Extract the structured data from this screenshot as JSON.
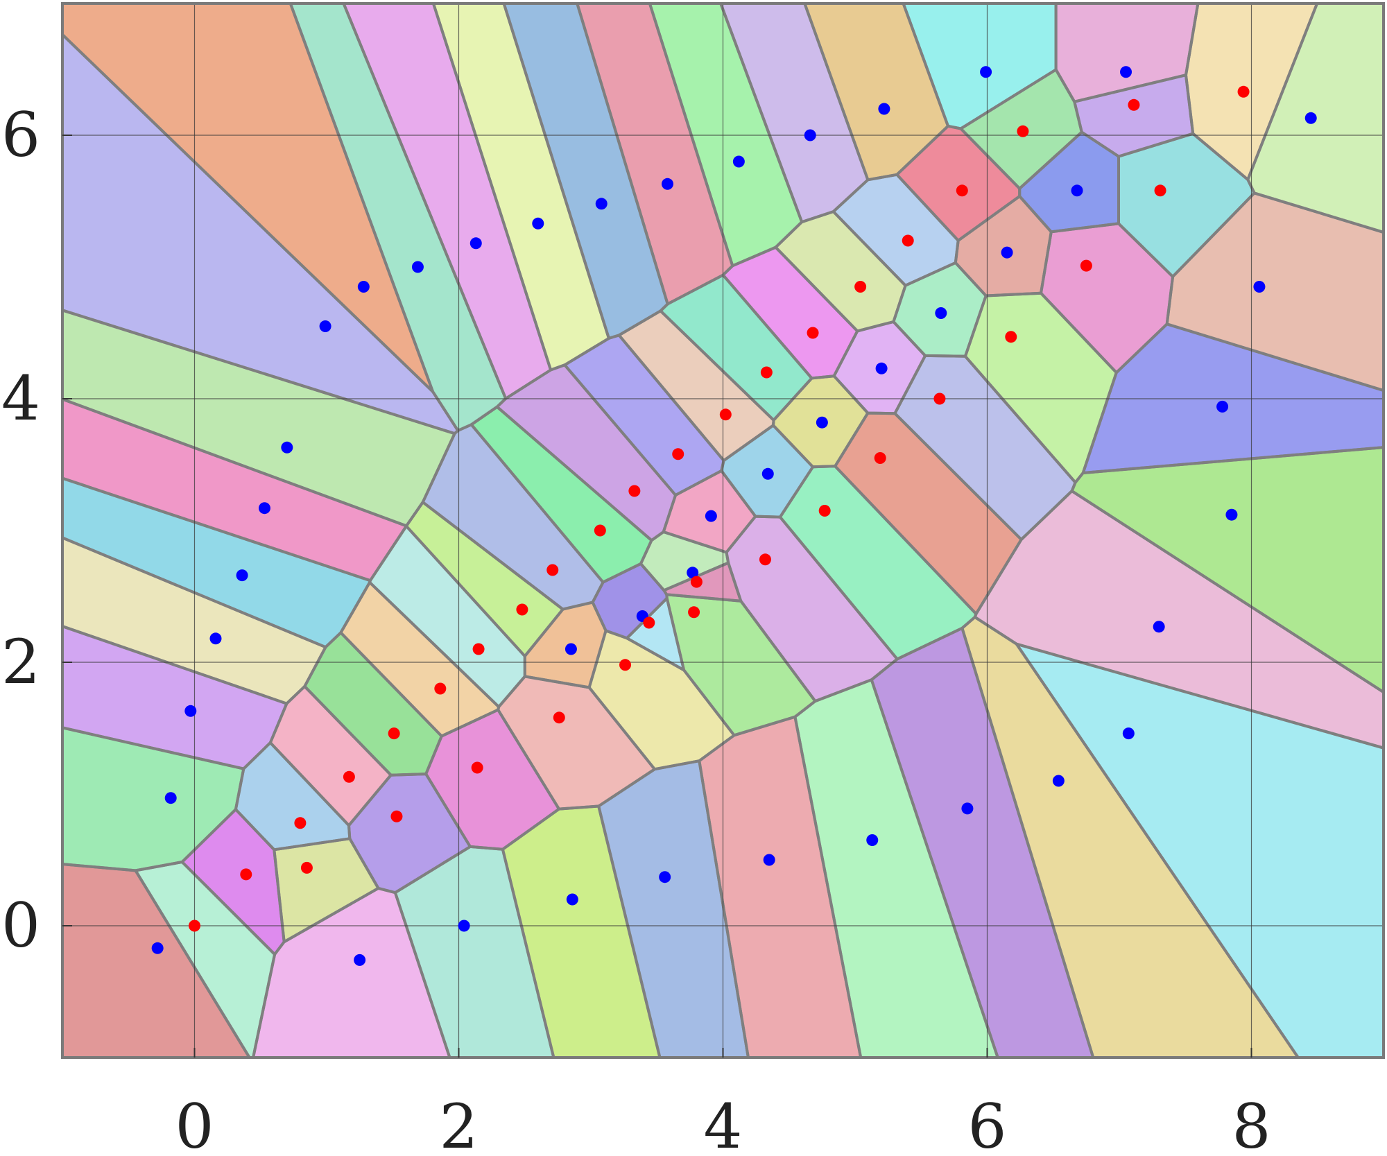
{
  "chart_data": {
    "type": "scatter",
    "title": "",
    "xlabel": "",
    "ylabel": "",
    "xlim": [
      -1,
      9
    ],
    "ylim": [
      -1,
      7
    ],
    "grid": true,
    "background": "voronoi-regions",
    "x_ticks": [
      0,
      2,
      4,
      6,
      8
    ],
    "y_ticks": [
      0,
      2,
      4,
      6
    ],
    "x_tick_labels": [
      "0",
      "2",
      "4",
      "6",
      "8"
    ],
    "y_tick_labels": [
      "0",
      "2",
      "4",
      "6"
    ],
    "series": [
      {
        "color": "#0000ff",
        "points": [
          [
            -0.28,
            -0.17
          ],
          [
            -0.18,
            0.97
          ],
          [
            -0.03,
            1.63
          ],
          [
            0.16,
            2.18
          ],
          [
            0.36,
            2.66
          ],
          [
            0.53,
            3.17
          ],
          [
            0.7,
            3.63
          ],
          [
            0.99,
            4.55
          ],
          [
            1.28,
            4.85
          ],
          [
            1.69,
            5.0
          ],
          [
            2.13,
            5.18
          ],
          [
            2.6,
            5.33
          ],
          [
            3.08,
            5.48
          ],
          [
            3.58,
            5.63
          ],
          [
            4.12,
            5.8
          ],
          [
            4.66,
            6.0
          ],
          [
            5.22,
            6.2
          ],
          [
            5.99,
            6.48
          ],
          [
            7.05,
            6.48
          ],
          [
            8.45,
            6.13
          ],
          [
            6.68,
            5.58
          ],
          [
            6.15,
            5.11
          ],
          [
            5.65,
            4.65
          ],
          [
            5.2,
            4.23
          ],
          [
            4.75,
            3.82
          ],
          [
            4.34,
            3.43
          ],
          [
            3.91,
            3.11
          ],
          [
            3.77,
            2.68
          ],
          [
            3.39,
            2.35
          ],
          [
            2.85,
            2.1
          ],
          [
            2.04,
            0.0
          ],
          [
            1.25,
            -0.26
          ],
          [
            2.86,
            0.2
          ],
          [
            3.56,
            0.37
          ],
          [
            4.35,
            0.5
          ],
          [
            5.13,
            0.65
          ],
          [
            5.85,
            0.89
          ],
          [
            6.54,
            1.1
          ],
          [
            7.07,
            1.46
          ],
          [
            7.3,
            2.27
          ],
          [
            7.85,
            3.12
          ],
          [
            7.78,
            3.94
          ],
          [
            8.06,
            4.85
          ]
        ]
      },
      {
        "color": "#ff0000",
        "points": [
          [
            0.0,
            0.0
          ],
          [
            0.39,
            0.39
          ],
          [
            0.85,
            0.44
          ],
          [
            0.8,
            0.78
          ],
          [
            1.17,
            1.13
          ],
          [
            1.51,
            1.46
          ],
          [
            1.53,
            0.83
          ],
          [
            1.86,
            1.8
          ],
          [
            2.15,
            2.1
          ],
          [
            2.14,
            1.2
          ],
          [
            2.48,
            2.4
          ],
          [
            2.71,
            2.7
          ],
          [
            2.76,
            1.58
          ],
          [
            3.07,
            3.0
          ],
          [
            3.33,
            3.3
          ],
          [
            3.26,
            1.98
          ],
          [
            3.44,
            2.3
          ],
          [
            3.8,
            2.61
          ],
          [
            3.78,
            2.38
          ],
          [
            3.66,
            3.58
          ],
          [
            4.02,
            3.88
          ],
          [
            4.33,
            4.2
          ],
          [
            4.68,
            4.5
          ],
          [
            5.04,
            4.85
          ],
          [
            5.4,
            5.2
          ],
          [
            5.81,
            5.58
          ],
          [
            6.27,
            6.03
          ],
          [
            7.11,
            6.23
          ],
          [
            7.94,
            6.33
          ],
          [
            7.31,
            5.58
          ],
          [
            6.75,
            5.01
          ],
          [
            6.18,
            4.47
          ],
          [
            5.64,
            4.0
          ],
          [
            5.19,
            3.55
          ],
          [
            4.77,
            3.15
          ],
          [
            4.32,
            2.78
          ]
        ]
      }
    ]
  }
}
